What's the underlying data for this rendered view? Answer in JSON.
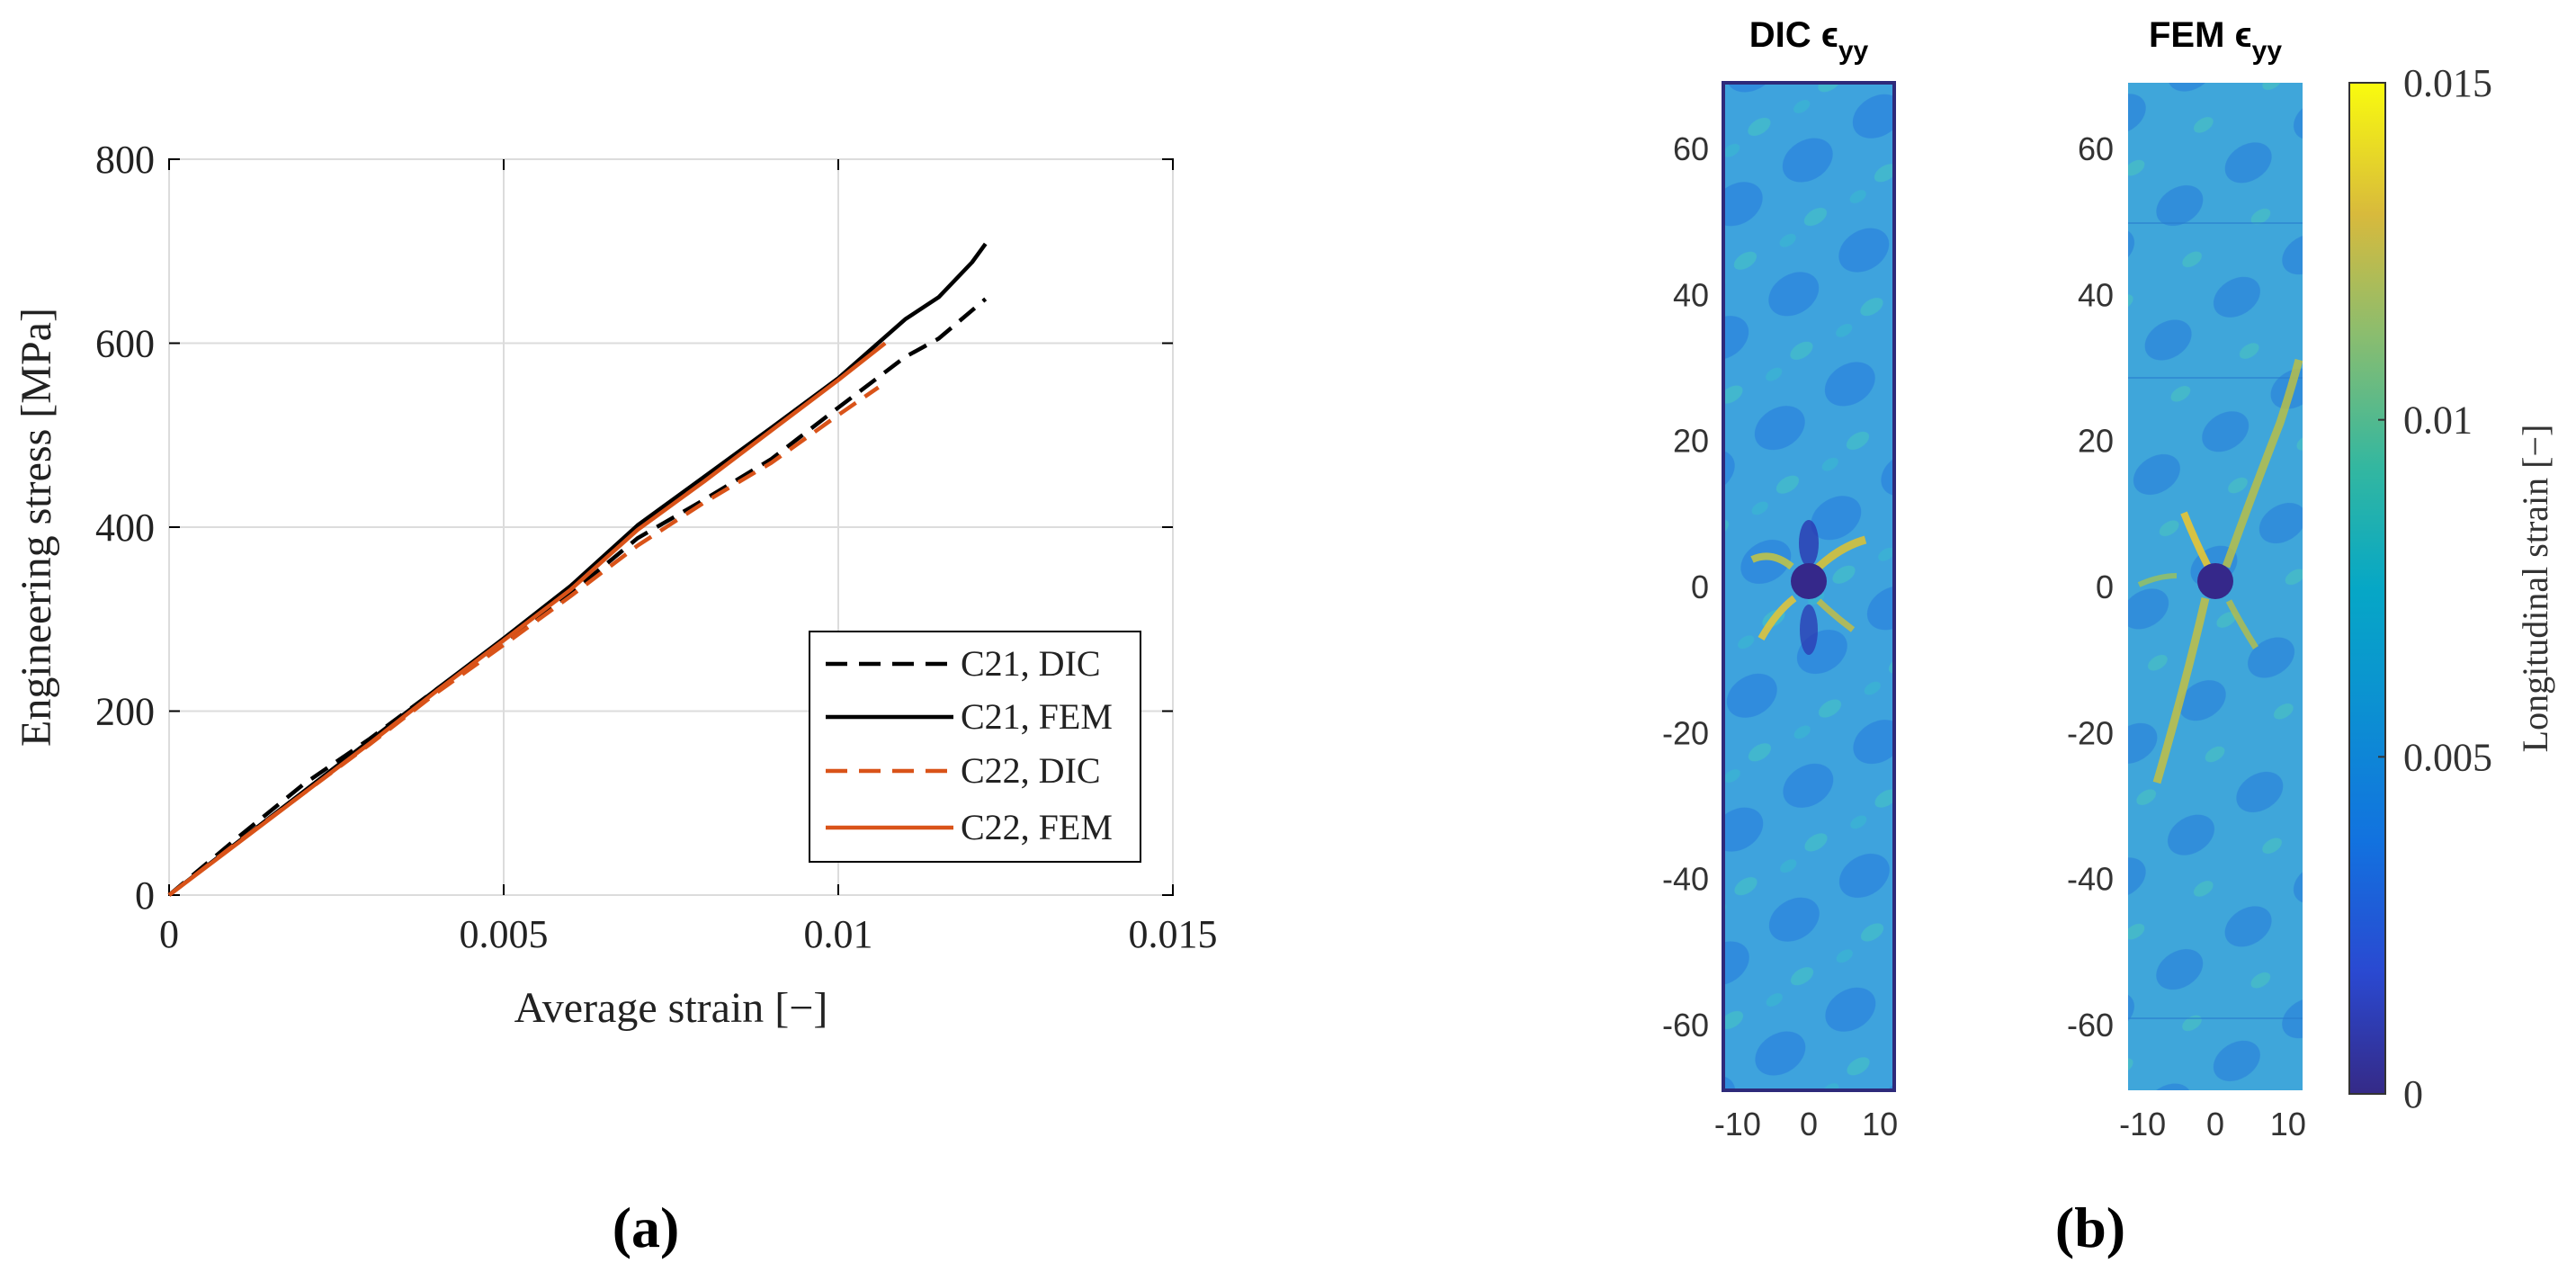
{
  "chart_data": [
    {
      "panel": "(a)",
      "type": "line",
      "xlabel": "Average strain [−]",
      "ylabel": "Engineering stress [MPa]",
      "xlim": [
        0,
        0.015
      ],
      "ylim": [
        0,
        800
      ],
      "xticks": [
        0,
        0.005,
        0.01,
        0.015
      ],
      "xtick_labels": [
        "0",
        "0.005",
        "0.01",
        "0.015"
      ],
      "yticks": [
        0,
        200,
        400,
        600,
        800
      ],
      "ytick_labels": [
        "0",
        "200",
        "400",
        "600",
        "800"
      ],
      "grid": true,
      "legend_position": "bottom-right",
      "series": [
        {
          "name": "C21, DIC",
          "color": "#000000",
          "style": "dashed",
          "x": [
            0,
            0.001,
            0.002,
            0.003,
            0.004,
            0.005,
            0.006,
            0.007,
            0.008,
            0.009,
            0.01,
            0.011,
            0.0115,
            0.0122
          ],
          "y": [
            0,
            61,
            120,
            170,
            224,
            275,
            328,
            388,
            430,
            474,
            530,
            585,
            605,
            648
          ]
        },
        {
          "name": "C21, FEM",
          "color": "#000000",
          "style": "solid",
          "x": [
            0,
            0.001,
            0.002,
            0.003,
            0.004,
            0.005,
            0.006,
            0.007,
            0.008,
            0.009,
            0.01,
            0.011,
            0.0115,
            0.012,
            0.0122
          ],
          "y": [
            0,
            56,
            112,
            168,
            224,
            279,
            336,
            402,
            455,
            508,
            562,
            626,
            650,
            688,
            708
          ]
        },
        {
          "name": "C22, DIC",
          "color": "#D95319",
          "style": "dashed",
          "x": [
            0,
            0.001,
            0.002,
            0.003,
            0.004,
            0.005,
            0.006,
            0.007,
            0.008,
            0.009,
            0.01,
            0.0106
          ],
          "y": [
            0,
            56,
            110,
            164,
            220,
            272,
            325,
            380,
            427,
            470,
            522,
            552
          ]
        },
        {
          "name": "C22, FEM",
          "color": "#D95319",
          "style": "solid",
          "x": [
            0,
            0.001,
            0.002,
            0.003,
            0.004,
            0.005,
            0.006,
            0.007,
            0.008,
            0.009,
            0.01,
            0.0107
          ],
          "y": [
            0,
            55,
            110,
            165,
            222,
            277,
            332,
            397,
            450,
            505,
            560,
            600
          ]
        }
      ]
    },
    {
      "panel": "(b)",
      "type": "heatmap",
      "maps": [
        {
          "title": "DIC ϵ",
          "subscript": "yy"
        },
        {
          "title": "FEM ϵ",
          "subscript": "yy"
        }
      ],
      "ylim": [
        -69,
        69
      ],
      "xlim": [
        -12,
        12
      ],
      "yticks": [
        60,
        40,
        20,
        0,
        -20,
        -40,
        -60
      ],
      "ytick_labels": [
        "60",
        "40",
        "20",
        "0",
        "-20",
        "-40",
        "-60"
      ],
      "xticks": [
        -10,
        0,
        10
      ],
      "xtick_labels": [
        "-10",
        "0",
        "10"
      ],
      "colorbar": {
        "label": "Longitudinal strain [−]",
        "range": [
          0,
          0.015
        ],
        "ticks": [
          0,
          0.005,
          0.01,
          0.015
        ],
        "tick_labels": [
          "0",
          "0.005",
          "0.01",
          "0.015"
        ]
      }
    }
  ],
  "panel_labels": {
    "a": "(a)",
    "b": "(b)"
  }
}
